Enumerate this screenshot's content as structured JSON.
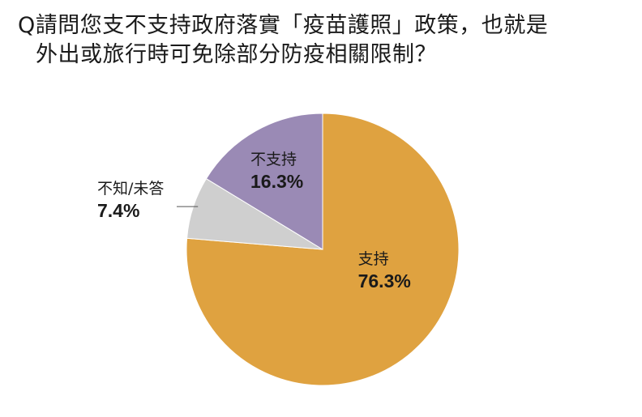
{
  "title_line1": "Q請問您支不支持政府落實「疫苗護照」政策，也就是",
  "title_line2": "外出或旅行時可免除部分防疫相關限制？",
  "chart_data": {
    "type": "pie",
    "title": "Q請問您支不支持政府落實「疫苗護照」政策，也就是外出或旅行時可免除部分防疫相關限制？",
    "unit": "%",
    "slices": [
      {
        "label": "支持",
        "value": 76.3,
        "value_label": "76.3%",
        "color": "#DFA240"
      },
      {
        "label": "不知/未答",
        "value": 7.4,
        "value_label": "7.4%",
        "color": "#CFCFCF"
      },
      {
        "label": "不支持",
        "value": 16.3,
        "value_label": "16.3%",
        "color": "#9A8AB5"
      }
    ],
    "start_angle_deg": 0,
    "direction": "clockwise",
    "label_placement": {
      "支持": "inside",
      "不支持": "inside",
      "不知/未答": "outside-left-with-leader"
    }
  }
}
